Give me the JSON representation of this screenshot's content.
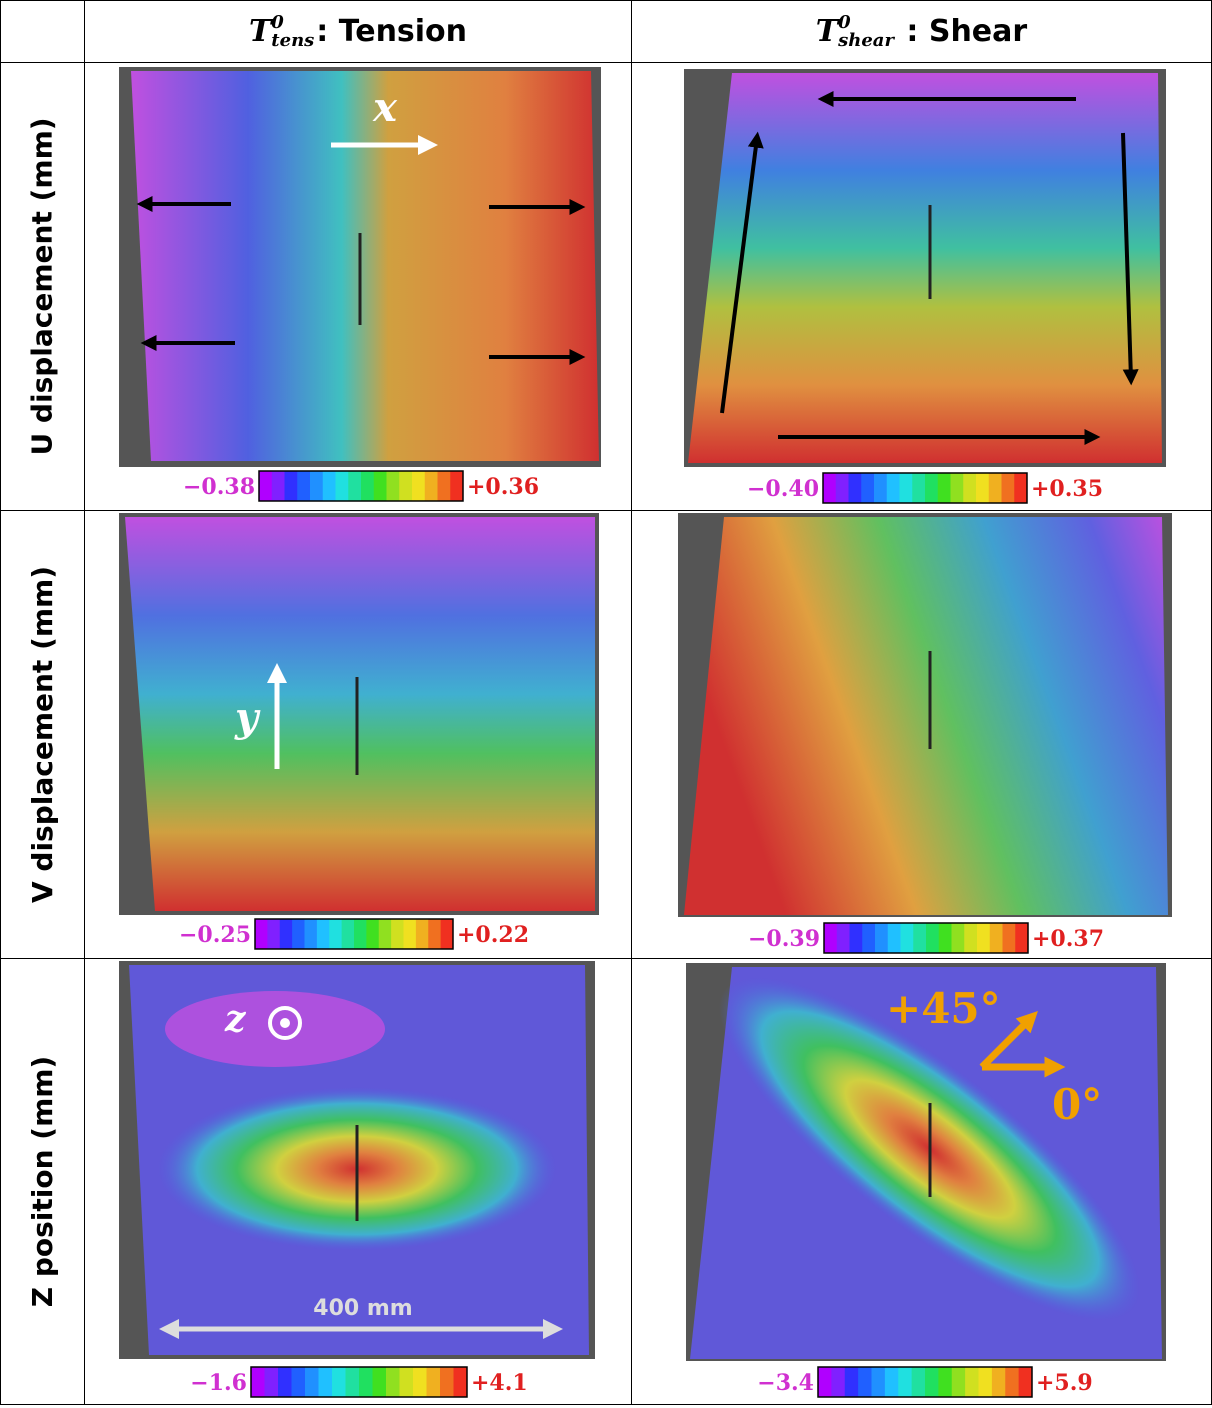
{
  "header": {
    "columns": [
      {
        "symbol": "T",
        "superscript": "0",
        "subscript": "tens",
        "text": ": Tension"
      },
      {
        "symbol": "T",
        "superscript": "0",
        "subscript": "shear",
        "text": " : Shear"
      }
    ]
  },
  "rows": [
    {
      "label": "U displacement (mm)",
      "cells": [
        {
          "min": "−0.38",
          "max": "+0.36",
          "annotations": [
            "x"
          ]
        },
        {
          "min": "−0.40",
          "max": "+0.35",
          "annotations": []
        }
      ]
    },
    {
      "label": "V displacement (mm)",
      "cells": [
        {
          "min": "−0.25",
          "max": "+0.22",
          "annotations": [
            "y"
          ]
        },
        {
          "min": "−0.39",
          "max": "+0.37",
          "annotations": []
        }
      ]
    },
    {
      "label": "Z position (mm)",
      "cells": [
        {
          "min": "−1.6",
          "max": "+4.1",
          "annotations": [
            "z",
            "400 mm"
          ]
        },
        {
          "min": "−3.4",
          "max": "+5.9",
          "annotations": [
            "+45°",
            "0°"
          ]
        }
      ]
    }
  ]
}
